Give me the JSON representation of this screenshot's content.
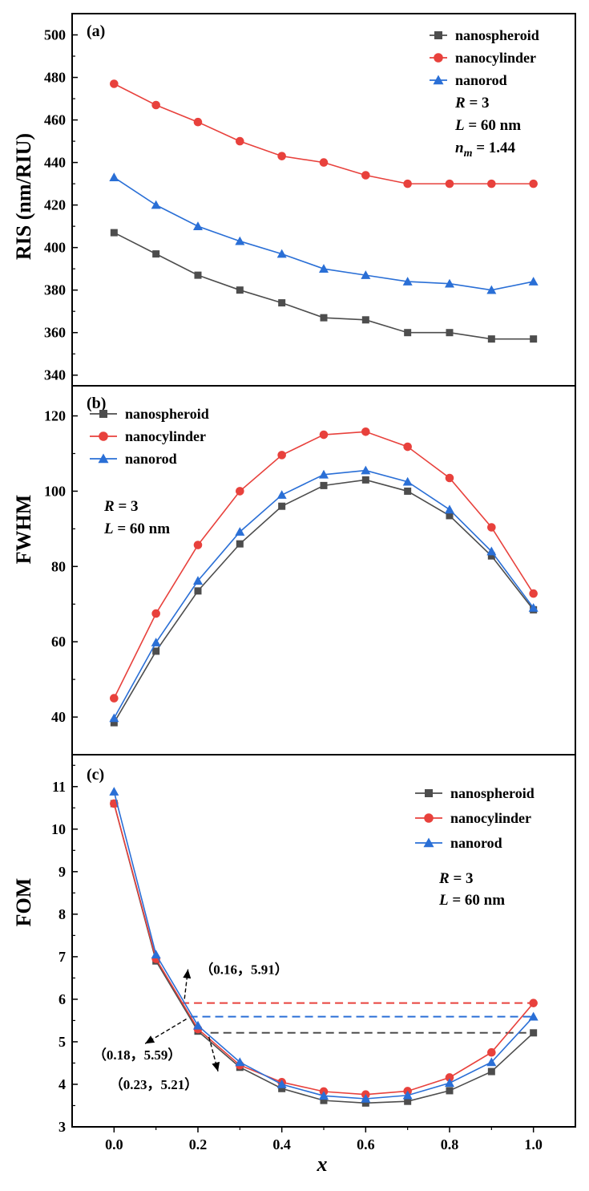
{
  "chart_data": [
    {
      "type": "line",
      "panel_label": "(a)",
      "ylabel": "RIS (nm/RIU)",
      "xlabel": "",
      "ylim": [
        335,
        510
      ],
      "yticks": [
        340,
        360,
        380,
        400,
        420,
        440,
        460,
        480,
        500
      ],
      "x": [
        0.0,
        0.1,
        0.2,
        0.3,
        0.4,
        0.5,
        0.6,
        0.7,
        0.8,
        0.9,
        1.0
      ],
      "series": [
        {
          "name": "nanospheroid",
          "color": "#4d4d4d",
          "marker": "square",
          "values": [
            407,
            397,
            387,
            380,
            374,
            367,
            366,
            360,
            360,
            357,
            357
          ]
        },
        {
          "name": "nanocylinder",
          "color": "#e8413c",
          "marker": "circle",
          "values": [
            477,
            467,
            459,
            450,
            443,
            440,
            434,
            430,
            430,
            430,
            430
          ]
        },
        {
          "name": "nanorod",
          "color": "#2a6fd6",
          "marker": "triangle",
          "values": [
            433,
            420,
            410,
            403,
            397,
            390,
            387,
            384,
            383,
            380,
            384
          ]
        }
      ],
      "legend_position": "top-right",
      "params": [
        {
          "var": "R",
          "sub": "",
          "rest": " = 3"
        },
        {
          "var": "L",
          "sub": "",
          "rest": " = 60 nm"
        },
        {
          "var": "n",
          "sub": "m",
          "rest": " = 1.44"
        }
      ]
    },
    {
      "type": "line",
      "panel_label": "(b)",
      "ylabel": "FWHM",
      "xlabel": "",
      "ylim": [
        30,
        128
      ],
      "yticks": [
        40,
        60,
        80,
        100,
        120
      ],
      "x": [
        0.0,
        0.1,
        0.2,
        0.3,
        0.4,
        0.5,
        0.6,
        0.7,
        0.8,
        0.9,
        1.0
      ],
      "series": [
        {
          "name": "nanospheroid",
          "color": "#4d4d4d",
          "marker": "square",
          "values": [
            38.5,
            57.5,
            73.5,
            86.0,
            96.0,
            101.5,
            103.0,
            100.0,
            93.5,
            82.8,
            68.5
          ]
        },
        {
          "name": "nanocylinder",
          "color": "#e8413c",
          "marker": "circle",
          "values": [
            45.0,
            67.5,
            85.7,
            100.0,
            109.6,
            115.0,
            115.8,
            111.8,
            103.5,
            90.4,
            72.8
          ]
        },
        {
          "name": "nanorod",
          "color": "#2a6fd6",
          "marker": "triangle",
          "values": [
            39.7,
            59.8,
            76.2,
            89.2,
            99.0,
            104.4,
            105.5,
            102.5,
            95.1,
            84.0,
            69.0
          ]
        }
      ],
      "legend_position": "top-left",
      "params": [
        {
          "var": "R",
          "sub": "",
          "rest": " = 3"
        },
        {
          "var": "L",
          "sub": "",
          "rest": " = 60 nm"
        }
      ]
    },
    {
      "type": "line",
      "panel_label": "(c)",
      "ylabel": "FOM",
      "xlabel": "x",
      "ylim": [
        3,
        11.75
      ],
      "yticks": [
        3,
        4,
        5,
        6,
        7,
        8,
        9,
        10,
        11
      ],
      "xlim": [
        -0.1,
        1.1
      ],
      "xticks": [
        "0.0",
        "0.2",
        "0.4",
        "0.6",
        "0.8",
        "1.0"
      ],
      "x": [
        0.0,
        0.1,
        0.2,
        0.3,
        0.4,
        0.5,
        0.6,
        0.7,
        0.8,
        0.9,
        1.0
      ],
      "series": [
        {
          "name": "nanospheroid",
          "color": "#4d4d4d",
          "marker": "square",
          "values": [
            10.6,
            6.9,
            5.25,
            4.4,
            3.9,
            3.62,
            3.56,
            3.6,
            3.85,
            4.3,
            5.21
          ]
        },
        {
          "name": "nanocylinder",
          "color": "#e8413c",
          "marker": "circle",
          "values": [
            10.6,
            6.95,
            5.3,
            4.45,
            4.05,
            3.83,
            3.76,
            3.84,
            4.16,
            4.75,
            5.91
          ]
        },
        {
          "name": "nanorod",
          "color": "#2a6fd6",
          "marker": "triangle",
          "values": [
            10.88,
            7.05,
            5.38,
            4.52,
            4.0,
            3.73,
            3.66,
            3.74,
            4.03,
            4.52,
            5.59
          ]
        }
      ],
      "legend_position": "top-right",
      "params": [
        {
          "var": "R",
          "sub": "",
          "rest": " = 3"
        },
        {
          "var": "L",
          "sub": "",
          "rest": " = 60 nm"
        }
      ],
      "reference_lines": [
        {
          "x_start": 0.16,
          "x_end": 1.0,
          "y": 5.91,
          "color": "#e8413c"
        },
        {
          "x_start": 0.18,
          "x_end": 1.0,
          "y": 5.59,
          "color": "#2a6fd6"
        },
        {
          "x_start": 0.23,
          "x_end": 1.0,
          "y": 5.21,
          "color": "#4d4d4d"
        }
      ],
      "annotations": [
        {
          "text": "（0.16，5.91）",
          "point": [
            0.16,
            5.91
          ],
          "label_at": [
            0.31,
            6.59
          ]
        },
        {
          "text": "（0.18，5.59）",
          "point": [
            0.18,
            5.59
          ],
          "label_at": [
            0.055,
            4.58
          ]
        },
        {
          "text": "（0.23，5.21）",
          "point": [
            0.23,
            5.21
          ],
          "label_at": [
            0.095,
            3.89
          ]
        }
      ]
    }
  ]
}
